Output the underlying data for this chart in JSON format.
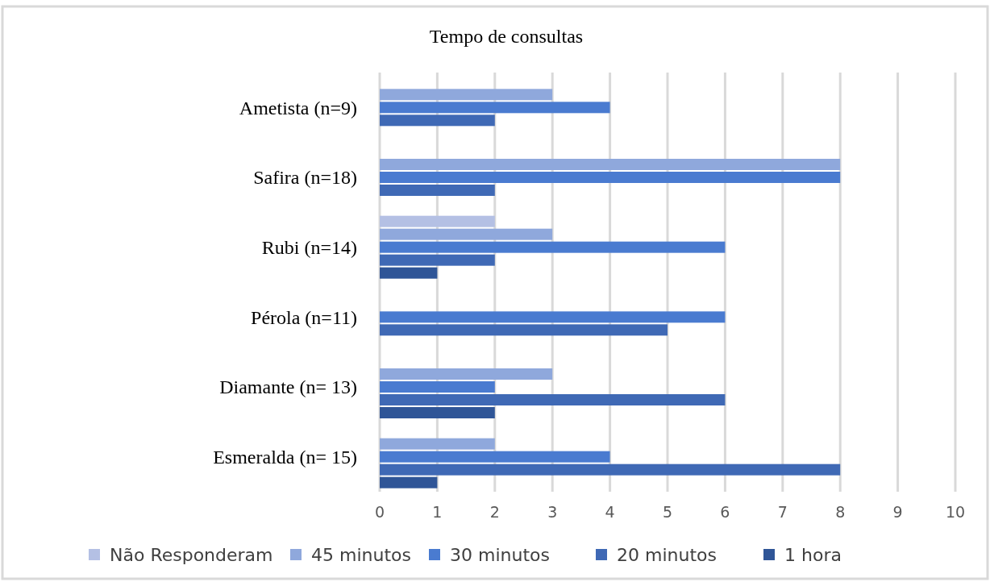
{
  "chart_data": {
    "type": "bar",
    "orientation": "horizontal",
    "title": "Tempo de consultas",
    "categories": [
      "Ametista (n=9)",
      "Safira (n=18)",
      "Rubi (n=14)",
      "Pérola (n=11)",
      "Diamante (n= 13)",
      "Esmeralda (n= 15)"
    ],
    "series": [
      {
        "name": "Não Responderam",
        "color": "#b4c0e4",
        "values": [
          0,
          0,
          2,
          0,
          0,
          0
        ]
      },
      {
        "name": "45 minutos",
        "color": "#8fa8dc",
        "values": [
          3,
          8,
          3,
          0,
          3,
          2
        ]
      },
      {
        "name": "30 minutos",
        "color": "#4a7bd0",
        "values": [
          4,
          8,
          6,
          6,
          2,
          4
        ]
      },
      {
        "name": "20 minutos",
        "color": "#3f69b5",
        "values": [
          2,
          2,
          2,
          5,
          6,
          8
        ]
      },
      {
        "name": "1 hora",
        "color": "#2f5597",
        "values": [
          0,
          0,
          1,
          0,
          2,
          1
        ]
      }
    ],
    "xlim": [
      0,
      10
    ],
    "xticks": [
      0,
      1,
      2,
      3,
      4,
      5,
      6,
      7,
      8,
      9,
      10
    ],
    "grid": "x",
    "legend": "bottom"
  }
}
